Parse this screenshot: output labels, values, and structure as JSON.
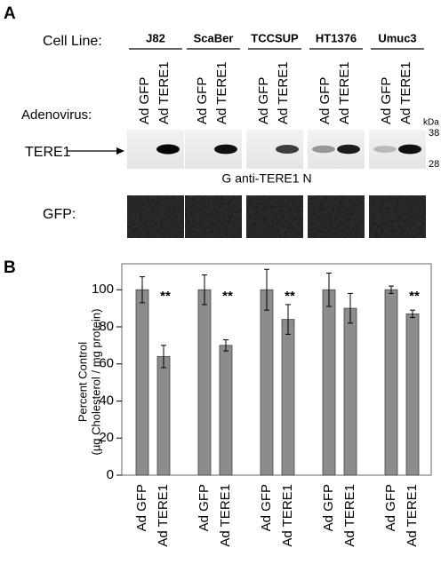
{
  "panel_a": {
    "label": "A",
    "cell_line_heading": "Cell Line:",
    "cell_lines": [
      "J82",
      "ScaBer",
      "TCCSUP",
      "HT1376",
      "Umuc3"
    ],
    "adenovirus_heading": "Adenovirus:",
    "lanes": [
      "Ad GFP",
      "Ad TERE1"
    ],
    "blot_label": "TERE1",
    "kda_unit": "kDa",
    "markers": [
      38,
      28
    ],
    "antibody": "G anti-TERE1 N",
    "gfp_label": "GFP:"
  },
  "chart_data": {
    "type": "bar",
    "panel_label": "B",
    "y_label": [
      "Percent Control",
      "(µg Cholesterol / mg protein)"
    ],
    "categories": [
      "Ad GFP",
      "Ad TERE1",
      "Ad GFP",
      "Ad TERE1",
      "Ad GFP",
      "Ad TERE1",
      "Ad GFP",
      "Ad TERE1",
      "Ad GFP",
      "Ad TERE1"
    ],
    "values": [
      100,
      64,
      100,
      70,
      100,
      84,
      100,
      90,
      100,
      87
    ],
    "errors": [
      7,
      6,
      8,
      3,
      11,
      8,
      9,
      8,
      2,
      2
    ],
    "significance": [
      null,
      "**",
      null,
      "**",
      null,
      "**",
      null,
      null,
      null,
      "**"
    ],
    "color": "#8c8c8c",
    "ylim": [
      0,
      114
    ],
    "yticks": [
      0,
      20,
      40,
      60,
      80,
      100
    ]
  }
}
